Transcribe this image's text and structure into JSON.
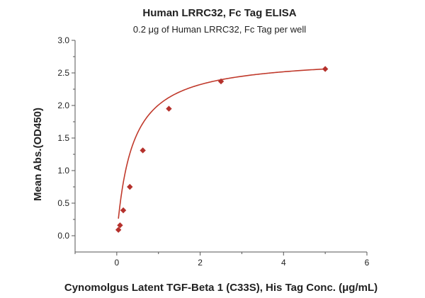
{
  "chart_data": {
    "type": "scatter",
    "title": "Human LRRC32, Fc Tag ELISA",
    "subtitle": "0.2 μg of Human LRRC32, Fc Tag per well",
    "xlabel": "Cynomolgus Latent TGF-Beta 1 (C33S), His Tag Conc. (μg/mL)",
    "ylabel": "Mean Abs.(OD450)",
    "xlim": [
      -1,
      6
    ],
    "ylim": [
      -0.25,
      3.0
    ],
    "x_ticks": [
      "0",
      "2",
      "4",
      "6"
    ],
    "y_ticks": [
      "0.0",
      "0.5",
      "1.0",
      "1.5",
      "2.0",
      "2.5",
      "3.0"
    ],
    "grid": false,
    "series": [
      {
        "x": [
          0.039,
          0.078,
          0.156,
          0.313,
          0.625,
          1.25,
          2.5,
          5.0
        ],
        "y": [
          0.09,
          0.16,
          0.39,
          0.75,
          1.31,
          1.95,
          2.37,
          2.56
        ],
        "fit": "hyperbolic",
        "fit_bmax": 2.75,
        "fit_kd": 0.37
      }
    ],
    "colors": {
      "points": "#b5312c",
      "fit_line": "#c0392b",
      "axis": "#555555"
    }
  }
}
